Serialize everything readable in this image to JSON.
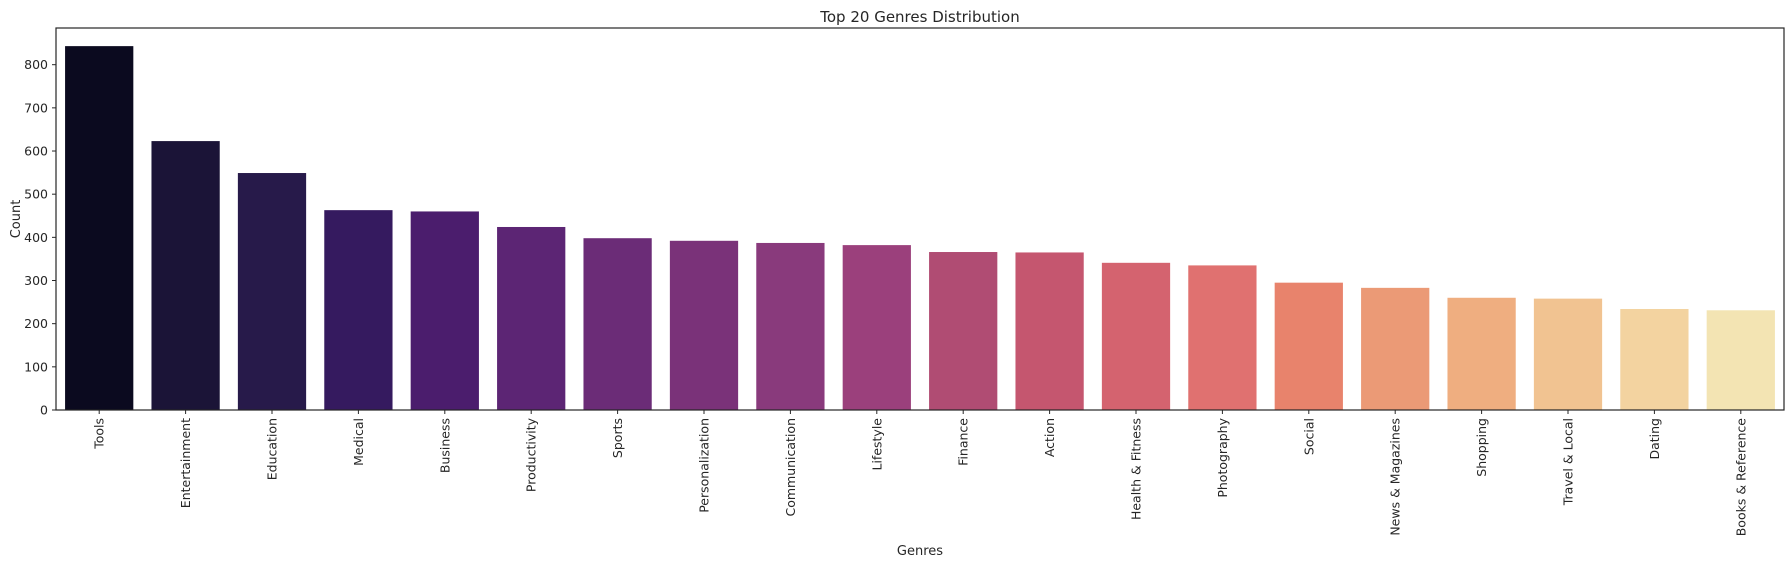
{
  "chart_data": {
    "type": "bar",
    "title": "Top 20 Genres Distribution",
    "xlabel": "Genres",
    "ylabel": "Count",
    "ylim": [
      0,
      885
    ],
    "yticks": [
      0,
      100,
      200,
      300,
      400,
      500,
      600,
      700,
      800
    ],
    "grid": false,
    "categories": [
      "Tools",
      "Entertainment",
      "Education",
      "Medical",
      "Business",
      "Productivity",
      "Sports",
      "Personalization",
      "Communication",
      "Lifestyle",
      "Finance",
      "Action",
      "Health & Fitness",
      "Photography",
      "Social",
      "News & Magazines",
      "Shopping",
      "Travel & Local",
      "Dating",
      "Books & Reference"
    ],
    "values": [
      843,
      623,
      549,
      463,
      460,
      424,
      398,
      392,
      387,
      382,
      366,
      365,
      341,
      335,
      295,
      283,
      260,
      258,
      234,
      231
    ],
    "colors": [
      "#0b0a1f",
      "#1b1437",
      "#271a4a",
      "#351a5f",
      "#4b1d6d",
      "#5c2574",
      "#6b2c77",
      "#7a3279",
      "#893a7c",
      "#9b407c",
      "#b04c73",
      "#c5566f",
      "#d4636f",
      "#e07170",
      "#e8836c",
      "#eb9a76",
      "#efae80",
      "#f1c391",
      "#f3d3a0",
      "#f3e4b3"
    ]
  }
}
